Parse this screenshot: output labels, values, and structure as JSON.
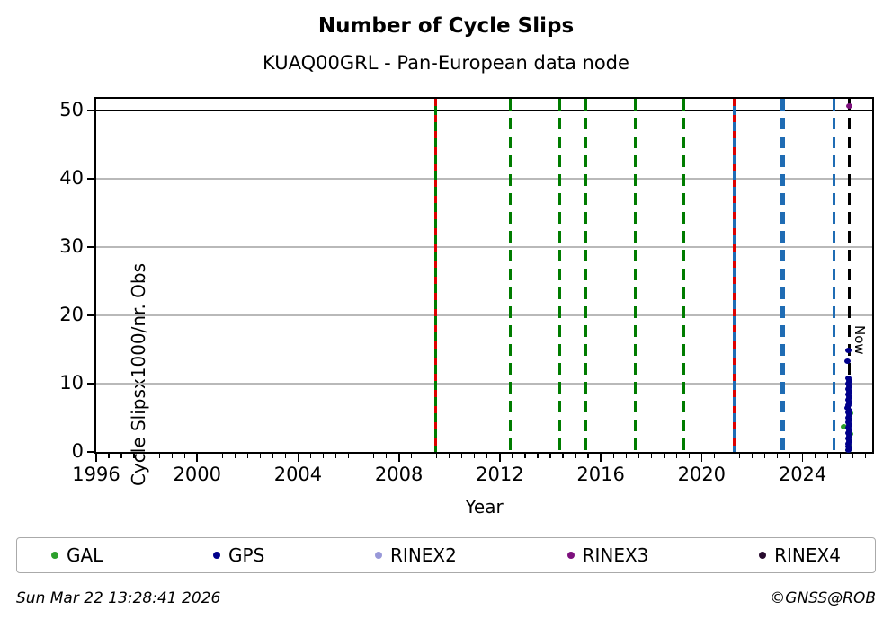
{
  "header": {
    "title": "Number of Cycle Slips",
    "subtitle": "KUAQ00GRL - Pan-European data node"
  },
  "footer": {
    "timestamp": "Sun Mar 22 13:28:41 2026",
    "credit": "©GNSS@ROB"
  },
  "chart_data": {
    "type": "scatter",
    "title": "Number of Cycle Slips",
    "subtitle": "KUAQ00GRL - Pan-European data node",
    "xlabel": "Year",
    "ylabel": "Cycle Slipsx1000/nr. Obs",
    "xlim": [
      1996,
      2026.76
    ],
    "ylim": [
      0,
      51.7
    ],
    "xticks_major": [
      1996,
      2000,
      2004,
      2008,
      2012,
      2016,
      2020,
      2024
    ],
    "xtick_minor_step": 0.5,
    "yticks": [
      0,
      10,
      20,
      30,
      40,
      50
    ],
    "grid": {
      "horizontal_values": [
        10,
        20,
        30,
        40
      ],
      "color": "#b9b9b9"
    },
    "hline": {
      "value": 50,
      "color": "#000000",
      "width": 2.5
    },
    "event_lines": [
      {
        "year": 2009.45,
        "style": "solid",
        "color": "#007c00",
        "width": 3,
        "overlay_color": "#dd0000"
      },
      {
        "year": 2012.43,
        "style": "dashed",
        "color": "#007c00",
        "width": 3
      },
      {
        "year": 2014.39,
        "style": "dashed",
        "color": "#007c00",
        "width": 3
      },
      {
        "year": 2015.39,
        "style": "dashed",
        "color": "#007c00",
        "width": 3
      },
      {
        "year": 2017.38,
        "style": "dashed",
        "color": "#007c00",
        "width": 3
      },
      {
        "year": 2019.31,
        "style": "dashed",
        "color": "#007c00",
        "width": 3
      },
      {
        "year": 2021.3,
        "style": "solid",
        "color": "#1f6cb4",
        "width": 3,
        "overlay_color": "#dd0000"
      },
      {
        "year": 2023.23,
        "style": "dashed",
        "color": "#1f6cb4",
        "width": 5
      },
      {
        "year": 2025.26,
        "style": "dashed",
        "color": "#1f6cb4",
        "width": 3
      }
    ],
    "now_line": {
      "year": 2025.86,
      "label": "Now",
      "color": "#000000",
      "style": "dashed",
      "width": 2.5
    },
    "series": [
      {
        "name": "GAL",
        "color": "#2ca02c",
        "points": [
          [
            2025.63,
            3.7
          ],
          [
            2025.88,
            5.7
          ],
          [
            2025.89,
            2.6
          ],
          [
            2025.84,
            0.8
          ],
          [
            2025.8,
            0.2
          ]
        ]
      },
      {
        "name": "GPS",
        "color": "#00008b",
        "points": [
          [
            2025.82,
            14.9
          ],
          [
            2025.79,
            13.3
          ],
          [
            2025.81,
            10.8
          ],
          [
            2025.84,
            10.4
          ],
          [
            2025.8,
            10.0
          ],
          [
            2025.85,
            9.6
          ],
          [
            2025.82,
            9.2
          ],
          [
            2025.86,
            8.8
          ],
          [
            2025.81,
            8.4
          ],
          [
            2025.84,
            8.0
          ],
          [
            2025.8,
            7.6
          ],
          [
            2025.85,
            7.2
          ],
          [
            2025.83,
            6.9
          ],
          [
            2025.79,
            6.5
          ],
          [
            2025.85,
            6.1
          ],
          [
            2025.82,
            5.8
          ],
          [
            2025.86,
            5.4
          ],
          [
            2025.81,
            5.0
          ],
          [
            2025.84,
            4.7
          ],
          [
            2025.8,
            4.3
          ],
          [
            2025.85,
            3.9
          ],
          [
            2025.82,
            3.6
          ],
          [
            2025.86,
            3.2
          ],
          [
            2025.81,
            2.8
          ],
          [
            2025.84,
            2.4
          ],
          [
            2025.8,
            2.0
          ],
          [
            2025.85,
            1.6
          ],
          [
            2025.83,
            1.2
          ],
          [
            2025.81,
            0.8
          ],
          [
            2025.85,
            0.5
          ],
          [
            2025.83,
            0.2
          ]
        ]
      },
      {
        "name": "RINEX2",
        "color": "#9898d8",
        "points": []
      },
      {
        "name": "RINEX3",
        "color": "#7d107d",
        "points": [
          [
            2025.84,
            50.7
          ]
        ]
      },
      {
        "name": "RINEX4",
        "color": "#270a2e",
        "points": []
      }
    ],
    "legend": {
      "position": "bottom",
      "entries": [
        "GAL",
        "GPS",
        "RINEX2",
        "RINEX3",
        "RINEX4"
      ]
    }
  }
}
